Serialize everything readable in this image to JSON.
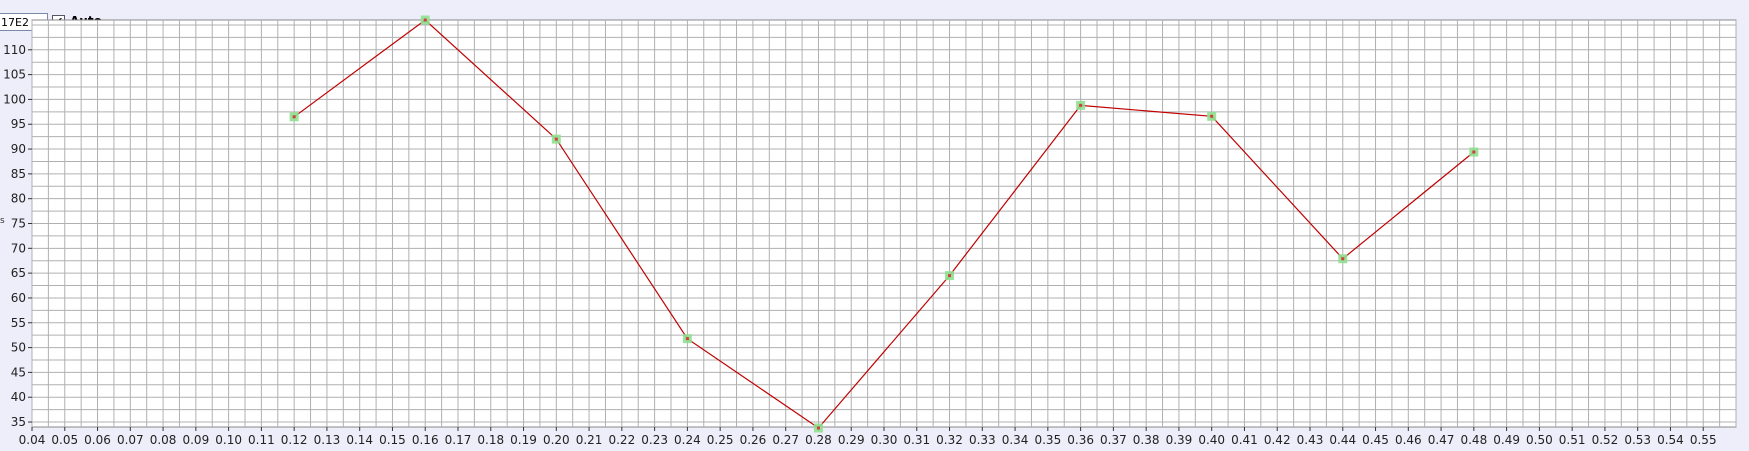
{
  "controls": {
    "max_value": "17E2",
    "auto_checked": true,
    "auto_label": "Auto",
    "axis_letter": "s"
  },
  "colors": {
    "background": "#eeeefa",
    "plot_background": "#ffffff",
    "grid": "#b0b0b0",
    "line": "#c00000",
    "marker_fill": "#8fe08f",
    "marker_center": "#d04040"
  },
  "chart_data": {
    "type": "line",
    "title": "",
    "xlabel": "",
    "ylabel": "",
    "xlim": [
      0.04,
      0.56
    ],
    "ylim": [
      34,
      116
    ],
    "grid": true,
    "x_ticks": [
      "0.04",
      "0.05",
      "0.06",
      "0.07",
      "0.08",
      "0.09",
      "0.10",
      "0.11",
      "0.12",
      "0.13",
      "0.14",
      "0.15",
      "0.16",
      "0.17",
      "0.18",
      "0.19",
      "0.20",
      "0.21",
      "0.22",
      "0.23",
      "0.24",
      "0.25",
      "0.26",
      "0.27",
      "0.28",
      "0.29",
      "0.30",
      "0.31",
      "0.32",
      "0.33",
      "0.34",
      "0.35",
      "0.36",
      "0.37",
      "0.38",
      "0.39",
      "0.40",
      "0.41",
      "0.42",
      "0.43",
      "0.44",
      "0.45",
      "0.46",
      "0.47",
      "0.48",
      "0.49",
      "0.50",
      "0.51",
      "0.52",
      "0.53",
      "0.54",
      "0.55"
    ],
    "y_ticks": [
      "35",
      "40",
      "45",
      "50",
      "55",
      "60",
      "65",
      "70",
      "75",
      "80",
      "85",
      "90",
      "95",
      "100",
      "105",
      "110"
    ],
    "series": [
      {
        "x": [
          0.12,
          0.16,
          0.2,
          0.24,
          0.28,
          0.32,
          0.36,
          0.4,
          0.44,
          0.48
        ],
        "values": [
          96.5,
          116,
          92,
          51.8,
          33.8,
          64.5,
          98.8,
          96.6,
          67.9,
          89.4
        ]
      }
    ]
  }
}
